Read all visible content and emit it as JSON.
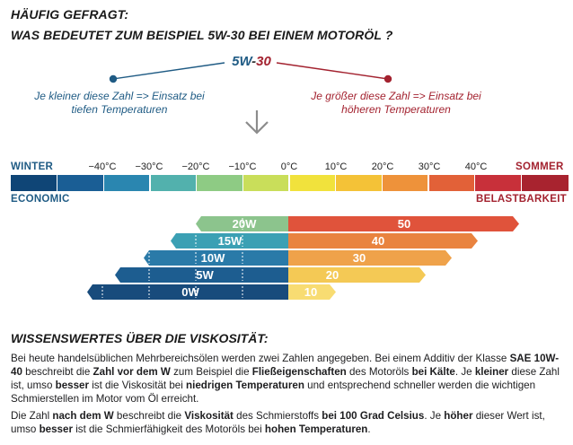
{
  "heading": {
    "line1": "HÄUFIG GEFRAGT:",
    "line2": "WAS BEDEUTET ZUM BEISPIEL 5W-30 BEI EINEM MOTORÖL ?"
  },
  "code": {
    "part1": "5W",
    "dash": "-",
    "part2": "30"
  },
  "left_hint": {
    "line1": "Je kleiner diese Zahl => Einsatz bei",
    "line2": "tiefen Temperaturen"
  },
  "right_hint": {
    "line1": "Je größer diese Zahl => Einsatz bei",
    "line2": "höheren Temperaturen"
  },
  "scale": {
    "left_top": "WINTER",
    "left_bottom": "ECONOMIC",
    "right_top": "SOMMER",
    "right_bottom": "BELASTBARKEIT",
    "ticks": [
      "−40°C",
      "−30°C",
      "−20°C",
      "−10°C",
      "0°C",
      "10°C",
      "20°C",
      "30°C",
      "40°C"
    ]
  },
  "grades": [
    {
      "winter": "20W",
      "summer": "50",
      "winter_color": "#8cc48d",
      "summer_color": "#e0533b"
    },
    {
      "winter": "15W",
      "summer": "40",
      "winter_color": "#3ba0b4",
      "summer_color": "#e9833f"
    },
    {
      "winter": "10W",
      "summer": "30",
      "winter_color": "#2a7aa8",
      "summer_color": "#efa24a"
    },
    {
      "winter": "5W",
      "summer": "20",
      "winter_color": "#1d5d90",
      "summer_color": "#f4c955"
    },
    {
      "winter": "0W",
      "summer": "10",
      "winter_color": "#184b7c",
      "summer_color": "#f8dc72"
    }
  ],
  "section_title": "WISSENSWERTES ÜBER DIE VISKOSITÄT:",
  "para1": {
    "t1": "Bei heute handelsüblichen Mehrbereichsölen werden zwei Zahlen angegeben. Bei einem Additiv der Klasse ",
    "b1": "SAE 10W-40",
    "t2": " beschreibt die ",
    "b2": "Zahl vor dem W",
    "t3": " zum Beispiel die ",
    "b3": "Fließeigenschaften",
    "t4": " des Motoröls ",
    "b4": "bei Kälte",
    "t5": ". Je ",
    "b5": "kleiner",
    "t6": " diese Zahl ist, umso ",
    "b6": "besser",
    "t7": " ist die Viskosität bei ",
    "b7": "niedrigen Temperaturen",
    "t8": " und entsprechend schneller werden die wichtigen Schmierstellen im Motor vom Öl erreicht."
  },
  "para2": {
    "t1": "Die Zahl ",
    "b1": "nach dem W",
    "t2": " beschreibt die ",
    "b2": "Viskosität",
    "t3": " des Schmierstoffs ",
    "b3": "bei 100 Grad Celsius",
    "t4": ". Je ",
    "b4": "höher",
    "t5": " dieser Wert ist, umso ",
    "b5": "besser",
    "t6": " ist die Schmierfähigkeit des Motoröls bei ",
    "b6": "hohen Temperaturen",
    "t7": "."
  },
  "colors": {
    "blue": "#1f5b84",
    "red": "#a3222f",
    "scale": [
      "#0f4576",
      "#1a5e95",
      "#2a86b0",
      "#52b1ad",
      "#8ecb84",
      "#c9de5a",
      "#f1e23c",
      "#f4c237",
      "#ee923a",
      "#e26138",
      "#c8303a",
      "#a8232f"
    ]
  }
}
